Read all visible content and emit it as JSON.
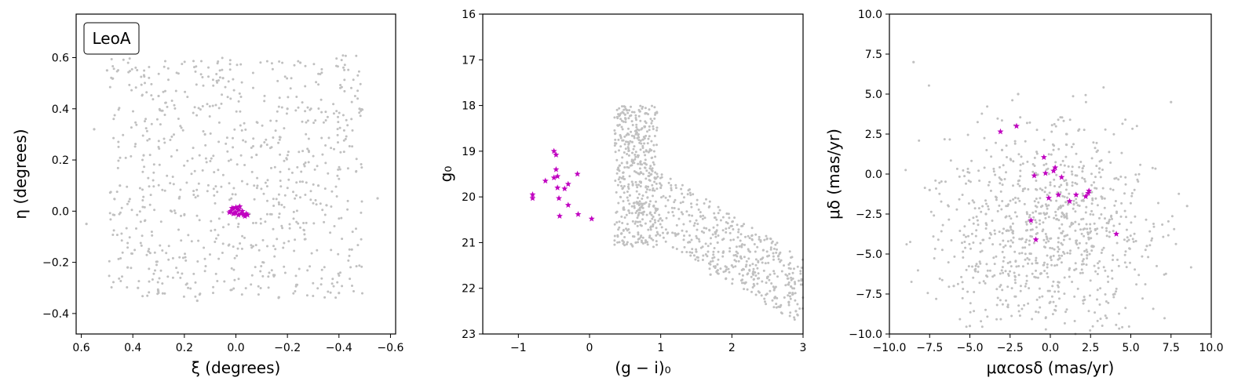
{
  "figure": {
    "colors": {
      "background": "#gray-points",
      "field": "#c0c0c0",
      "member": "#c000c0",
      "axis": "#000000"
    }
  },
  "chart_data": [
    {
      "type": "scatter",
      "title": "",
      "legend_text": "LeoA",
      "legend_placement": "top-left",
      "xlabel": "ξ (degrees)",
      "ylabel": "η (degrees)",
      "xlim": [
        0.62,
        -0.62
      ],
      "ylim": [
        -0.48,
        0.77
      ],
      "xticks": [
        0.6,
        0.4,
        0.2,
        0.0,
        -0.2,
        -0.4,
        -0.6
      ],
      "xtick_labels": [
        "0.6",
        "0.4",
        "0.2",
        "0.0",
        "−0.2",
        "−0.4",
        "−0.6"
      ],
      "yticks": [
        -0.4,
        -0.2,
        0.0,
        0.2,
        0.4,
        0.6
      ],
      "ytick_labels": [
        "−0.4",
        "−0.2",
        "0.0",
        "0.2",
        "0.4",
        "0.6"
      ],
      "grid": false,
      "series": [
        {
          "marker": "dot",
          "color": "#c0c0c0",
          "generated_from": "uniform field within footprint",
          "points": [
            [
              0.55,
              0.32
            ],
            [
              0.5,
              0.55
            ],
            [
              0.45,
              0.1
            ],
            [
              0.38,
              -0.3
            ],
            [
              0.3,
              0.45
            ],
            [
              0.22,
              0.05
            ],
            [
              0.15,
              -0.35
            ],
            [
              0.05,
              0.52
            ],
            [
              -0.08,
              0.22
            ],
            [
              -0.15,
              -0.25
            ],
            [
              -0.25,
              0.58
            ],
            [
              -0.32,
              0.1
            ],
            [
              -0.4,
              -0.32
            ],
            [
              -0.48,
              0.4
            ],
            [
              -0.55,
              0.05
            ],
            [
              0.58,
              -0.05
            ],
            [
              0.42,
              -0.22
            ],
            [
              0.12,
              0.3
            ],
            [
              -0.2,
              0.4
            ],
            [
              -0.45,
              -0.15
            ]
          ]
        },
        {
          "marker": "star",
          "color": "#c000c0",
          "points": [
            [
              0.02,
              0.0
            ],
            [
              0.01,
              0.01
            ],
            [
              0.0,
              -0.005
            ],
            [
              -0.01,
              0.005
            ],
            [
              -0.02,
              -0.01
            ],
            [
              -0.03,
              -0.015
            ],
            [
              -0.04,
              -0.01
            ],
            [
              0.015,
              0.012
            ],
            [
              -0.005,
              0.01
            ],
            [
              0.005,
              -0.008
            ],
            [
              -0.025,
              0.0
            ],
            [
              -0.035,
              -0.02
            ],
            [
              0.01,
              -0.01
            ],
            [
              -0.015,
              0.018
            ],
            [
              0.0,
              0.015
            ],
            [
              -0.045,
              -0.015
            ],
            [
              0.025,
              -0.005
            ],
            [
              -0.01,
              -0.015
            ]
          ]
        }
      ]
    },
    {
      "type": "scatter",
      "title": "",
      "xlabel": "(g − i)₀",
      "ylabel": "g₀",
      "xlim": [
        -1.5,
        3.0
      ],
      "ylim": [
        23.0,
        16.0
      ],
      "xticks": [
        -1,
        0,
        1,
        2,
        3
      ],
      "xtick_labels": [
        "−1",
        "0",
        "1",
        "2",
        "3"
      ],
      "yticks": [
        16,
        17,
        18,
        19,
        20,
        21,
        22,
        23
      ],
      "ytick_labels": [
        "16",
        "17",
        "18",
        "19",
        "20",
        "21",
        "22",
        "23"
      ],
      "grid": false,
      "series": [
        {
          "marker": "dot",
          "color": "#c0c0c0",
          "generated_from": "red giant branch and field sequence",
          "points": [
            [
              0.5,
              18.2
            ],
            [
              0.6,
              18.8
            ],
            [
              0.7,
              19.5
            ],
            [
              0.55,
              20.3
            ],
            [
              0.45,
              20.8
            ],
            [
              0.8,
              19.0
            ],
            [
              0.9,
              20.2
            ],
            [
              1.2,
              20.8
            ],
            [
              1.5,
              21.2
            ],
            [
              1.8,
              21.0
            ],
            [
              2.0,
              21.5
            ],
            [
              2.3,
              21.7
            ],
            [
              2.6,
              22.0
            ],
            [
              2.8,
              22.3
            ],
            [
              2.9,
              22.5
            ],
            [
              1.0,
              19.8
            ],
            [
              1.4,
              20.4
            ],
            [
              2.5,
              21.3
            ],
            [
              0.65,
              21.0
            ],
            [
              1.7,
              21.7
            ]
          ]
        },
        {
          "marker": "star",
          "color": "#c000c0",
          "points": [
            [
              -0.5,
              19.0
            ],
            [
              -0.47,
              19.08
            ],
            [
              -0.47,
              19.4
            ],
            [
              -0.5,
              19.58
            ],
            [
              -0.45,
              19.55
            ],
            [
              -0.17,
              19.5
            ],
            [
              -0.3,
              19.72
            ],
            [
              -0.35,
              19.82
            ],
            [
              -0.45,
              19.8
            ],
            [
              -0.62,
              19.65
            ],
            [
              -0.8,
              19.95
            ],
            [
              -0.8,
              20.03
            ],
            [
              -0.43,
              20.03
            ],
            [
              -0.3,
              20.18
            ],
            [
              -0.42,
              20.42
            ],
            [
              -0.16,
              20.38
            ],
            [
              0.03,
              20.48
            ]
          ]
        }
      ]
    },
    {
      "type": "scatter",
      "title": "",
      "xlabel": "μαcosδ (mas/yr)",
      "ylabel": "μδ (mas/yr)",
      "xlim": [
        -10.0,
        10.0
      ],
      "ylim": [
        -10.0,
        10.0
      ],
      "xticks": [
        -10,
        -7.5,
        -5,
        -2.5,
        0,
        2.5,
        5,
        7.5,
        10
      ],
      "xtick_labels": [
        "−10.0",
        "−7.5",
        "−5.0",
        "−2.5",
        "0.0",
        "2.5",
        "5.0",
        "7.5",
        "10.0"
      ],
      "yticks": [
        -10,
        -7.5,
        -5,
        -2.5,
        0,
        2.5,
        5,
        7.5,
        10
      ],
      "ytick_labels": [
        "−10.0",
        "−7.5",
        "−5.0",
        "−2.5",
        "0.0",
        "2.5",
        "5.0",
        "7.5",
        "10.0"
      ],
      "grid": false,
      "series": [
        {
          "marker": "dot",
          "color": "#c0c0c0",
          "generated_from": "field proper motions",
          "points": [
            [
              -1.5,
              -3.0
            ],
            [
              -0.5,
              -1.0
            ],
            [
              0.5,
              -4.0
            ],
            [
              1.5,
              -6.0
            ],
            [
              -2.5,
              -5.5
            ],
            [
              -4.0,
              -2.5
            ],
            [
              2.8,
              -3.5
            ],
            [
              -6.0,
              -7.0
            ],
            [
              -3.0,
              1.5
            ],
            [
              0.0,
              -8.0
            ],
            [
              4.0,
              -7.5
            ],
            [
              -7.5,
              -1.0
            ],
            [
              6.0,
              -4.5
            ],
            [
              -2.0,
              5.0
            ],
            [
              1.0,
              2.5
            ],
            [
              -8.5,
              7.0
            ],
            [
              8.5,
              -2.0
            ],
            [
              3.5,
              -9.0
            ],
            [
              -5.0,
              -9.5
            ],
            [
              7.5,
              4.5
            ]
          ]
        },
        {
          "marker": "star",
          "color": "#c000c0",
          "points": [
            [
              -3.1,
              2.65
            ],
            [
              -2.1,
              3.0
            ],
            [
              -0.4,
              1.05
            ],
            [
              0.3,
              0.4
            ],
            [
              0.2,
              0.2
            ],
            [
              -0.3,
              0.05
            ],
            [
              0.7,
              -0.2
            ],
            [
              -1.0,
              -0.1
            ],
            [
              -0.1,
              -1.5
            ],
            [
              0.5,
              -1.3
            ],
            [
              1.2,
              -1.7
            ],
            [
              1.6,
              -1.3
            ],
            [
              2.2,
              -1.4
            ],
            [
              2.4,
              -1.05
            ],
            [
              2.35,
              -1.2
            ],
            [
              -1.2,
              -2.9
            ],
            [
              -0.9,
              -4.1
            ],
            [
              4.1,
              -3.75
            ]
          ]
        }
      ]
    }
  ]
}
